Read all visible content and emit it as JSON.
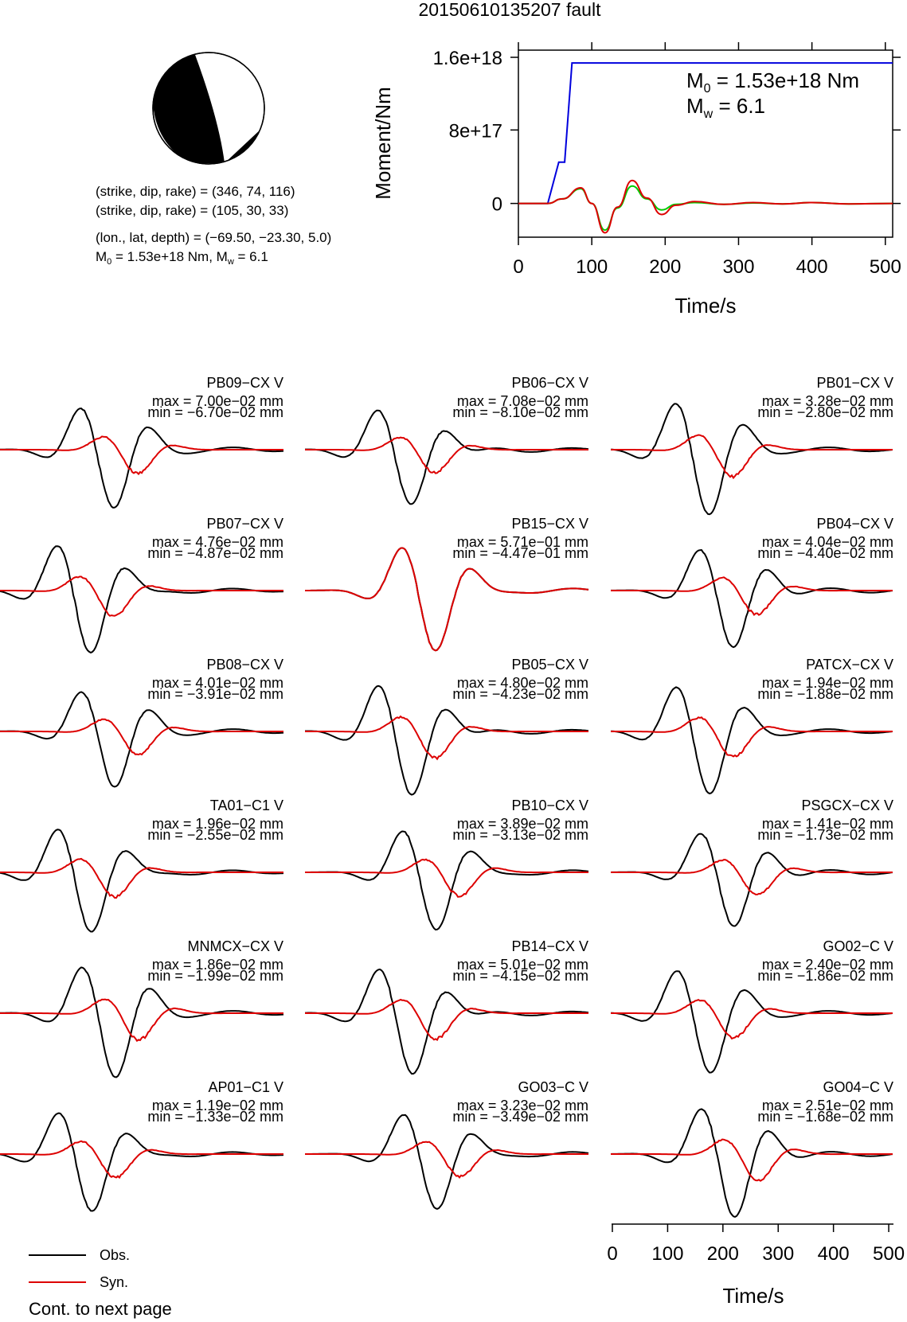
{
  "title": "20150610135207 fault",
  "mechanism": {
    "plane1": "(strike, dip, rake) = (346, 74, 116)",
    "plane2": "(strike, dip, rake) = (105, 30, 33)",
    "location": "(lon., lat, depth) = (−69.50, −23.30, 5.0)",
    "m0_prefix": "M",
    "m0_sub": "0",
    "m0_suffix": " = 1.53e+18 Nm, M",
    "mw_sub": "w",
    "mw_suffix": " = 6.1"
  },
  "moment_plot": {
    "ylabel": "Moment/Nm",
    "xlabel": "Time/s",
    "yticks": [
      "0",
      "8e+17",
      "1.6e+18"
    ],
    "xticks": [
      "0",
      "100",
      "200",
      "300",
      "400",
      "500"
    ],
    "m0_text_prefix": "M",
    "m0_text_sub": "0",
    "m0_text_suffix": " = 1.53e+18 Nm",
    "mw_text_prefix": "M",
    "mw_text_sub": "w",
    "mw_text_suffix": " = 6.1"
  },
  "colors": {
    "observed": "#000000",
    "synthetic": "#dd0000",
    "moment": "#0000dd",
    "moment_rate": "#00cc00"
  },
  "chart_data": [
    {
      "type": "line",
      "title": "",
      "xlabel": "Time/s",
      "ylabel": "Moment/Nm",
      "xlim": [
        0,
        510
      ],
      "ylim": [
        -3.5e+17,
        1.6e+18
      ],
      "series": [
        {
          "x": [
            0,
            40,
            55,
            55,
            63,
            63,
            73,
            73,
            510
          ],
          "values": [
            0,
            0,
            4.5e+17,
            4.5e+17,
            4.5e+17,
            4.5e+17,
            1.53e+18,
            1.53e+18,
            1.53e+18
          ]
        },
        {
          "x": [
            0,
            40,
            60,
            85,
            100,
            118,
            135,
            155,
            175,
            195,
            215,
            240,
            280,
            320,
            360,
            400,
            450,
            510
          ],
          "values": [
            0,
            0,
            5e+16,
            1.6e+17,
            0,
            -2.9e+17,
            -5e+16,
            1.9e+17,
            5e+16,
            -7e+16,
            -1e+16,
            1e+16,
            -1e+16,
            5000000000000000.0,
            -5000000000000000.0,
            1e+16,
            -5000000000000000.0,
            0
          ]
        },
        {
          "x": [
            0,
            40,
            60,
            85,
            100,
            118,
            135,
            155,
            175,
            195,
            215,
            240,
            280,
            320,
            360,
            400,
            450,
            510
          ],
          "values": [
            0,
            0,
            5e+16,
            1.7e+17,
            0,
            -3.2e+17,
            -4e+16,
            2.5e+17,
            6e+16,
            -1.2e+17,
            -2e+16,
            2e+16,
            -1e+16,
            1e+16,
            -5000000000000000.0,
            1e+16,
            -5000000000000000.0,
            0
          ]
        }
      ]
    },
    {
      "type": "line",
      "xlabel": "Time/s",
      "xlim": [
        0,
        510
      ],
      "xticks": [
        "0",
        "100",
        "200",
        "300",
        "400",
        "500"
      ],
      "legend": [
        "Obs.",
        "Syn."
      ],
      "stations": [
        {
          "name": "PB09−CX V",
          "max": "max = 7.00e−02 mm",
          "min": "min = −6.70e−02 mm"
        },
        {
          "name": "PB06−CX V",
          "max": "max = 7.08e−02 mm",
          "min": "min = −8.10e−02 mm"
        },
        {
          "name": "PB01−CX V",
          "max": "max = 3.28e−02 mm",
          "min": "min = −2.80e−02 mm"
        },
        {
          "name": "PB07−CX V",
          "max": "max = 4.76e−02 mm",
          "min": "min = −4.87e−02 mm"
        },
        {
          "name": "PB15−CX V",
          "max": "max = 5.71e−01 mm",
          "min": "min = −4.47e−01 mm"
        },
        {
          "name": "PB04−CX V",
          "max": "max = 4.04e−02 mm",
          "min": "min = −4.40e−02 mm"
        },
        {
          "name": "PB08−CX V",
          "max": "max = 4.01e−02 mm",
          "min": "min = −3.91e−02 mm"
        },
        {
          "name": "PB05−CX V",
          "max": "max = 4.80e−02 mm",
          "min": "min = −4.23e−02 mm"
        },
        {
          "name": "PATCX−CX V",
          "max": "max = 1.94e−02 mm",
          "min": "min = −1.88e−02 mm"
        },
        {
          "name": "TA01−C1 V",
          "max": "max = 1.96e−02 mm",
          "min": "min = −2.55e−02 mm"
        },
        {
          "name": "PB10−CX V",
          "max": "max = 3.89e−02 mm",
          "min": "min = −3.13e−02 mm"
        },
        {
          "name": "PSGCX−CX V",
          "max": "max = 1.41e−02 mm",
          "min": "min = −1.73e−02 mm"
        },
        {
          "name": "MNMCX−CX V",
          "max": "max = 1.86e−02 mm",
          "min": "min = −1.99e−02 mm"
        },
        {
          "name": "PB14−CX V",
          "max": "max = 5.01e−02 mm",
          "min": "min = −4.15e−02 mm"
        },
        {
          "name": "GO02−C V",
          "max": "max = 2.40e−02 mm",
          "min": "min = −1.86e−02 mm"
        },
        {
          "name": "AP01−C1 V",
          "max": "max = 1.19e−02 mm",
          "min": "min = −1.33e−02 mm"
        },
        {
          "name": "GO03−C V",
          "max": "max = 3.23e−02 mm",
          "min": "min = −3.49e−02 mm"
        },
        {
          "name": "GO04−C V",
          "max": "max = 2.51e−02 mm",
          "min": "min = −1.68e−02 mm"
        }
      ]
    }
  ],
  "legend": {
    "obs": "Obs.",
    "syn": "Syn."
  },
  "footer": "Cont. to next page"
}
